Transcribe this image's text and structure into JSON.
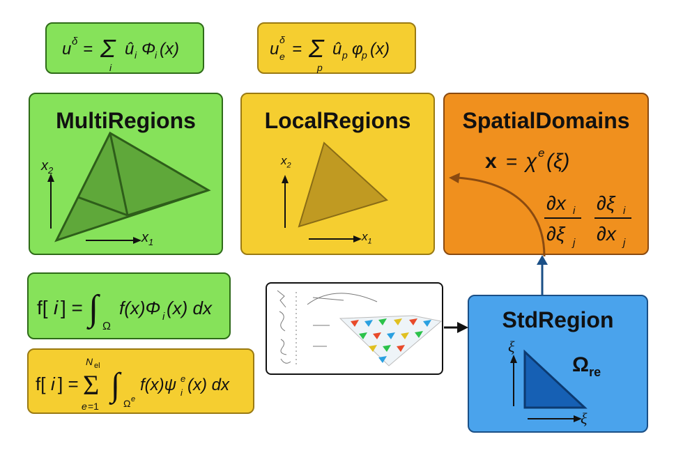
{
  "formulas": {
    "global_expansion": "u^δ = Σ_i û_i Φ_i(x)",
    "local_expansion": "u_e^δ = Σ_p û_p φ_p(x)",
    "global_integral": "f[i] = ∫_Ω f(x) Φ_i(x) dx",
    "local_integral": "f[i] = Σ_{e=1}^{N_el} ∫_{Ω^e} f(x) ψ_i^e(x) dx",
    "mapping": "x = χ^e(ξ)",
    "jacobian": "∂x_i/∂ξ_j   ∂ξ_i/∂x_j"
  },
  "boxes": {
    "multi": {
      "title": "MultiRegions"
    },
    "local": {
      "title": "LocalRegions"
    },
    "spatial": {
      "title": "SpatialDomains"
    },
    "std": {
      "title": "StdRegion",
      "omega_label": "Ω",
      "omega_sub": "re"
    }
  },
  "axes": {
    "x1": "x",
    "x1_sub": "1",
    "x2": "x",
    "x2_sub": "2",
    "xi": "ξ"
  },
  "colors": {
    "green": "#86e25a",
    "yellow": "#f5ce30",
    "orange": "#f0901e",
    "blue": "#4aa3ec"
  }
}
